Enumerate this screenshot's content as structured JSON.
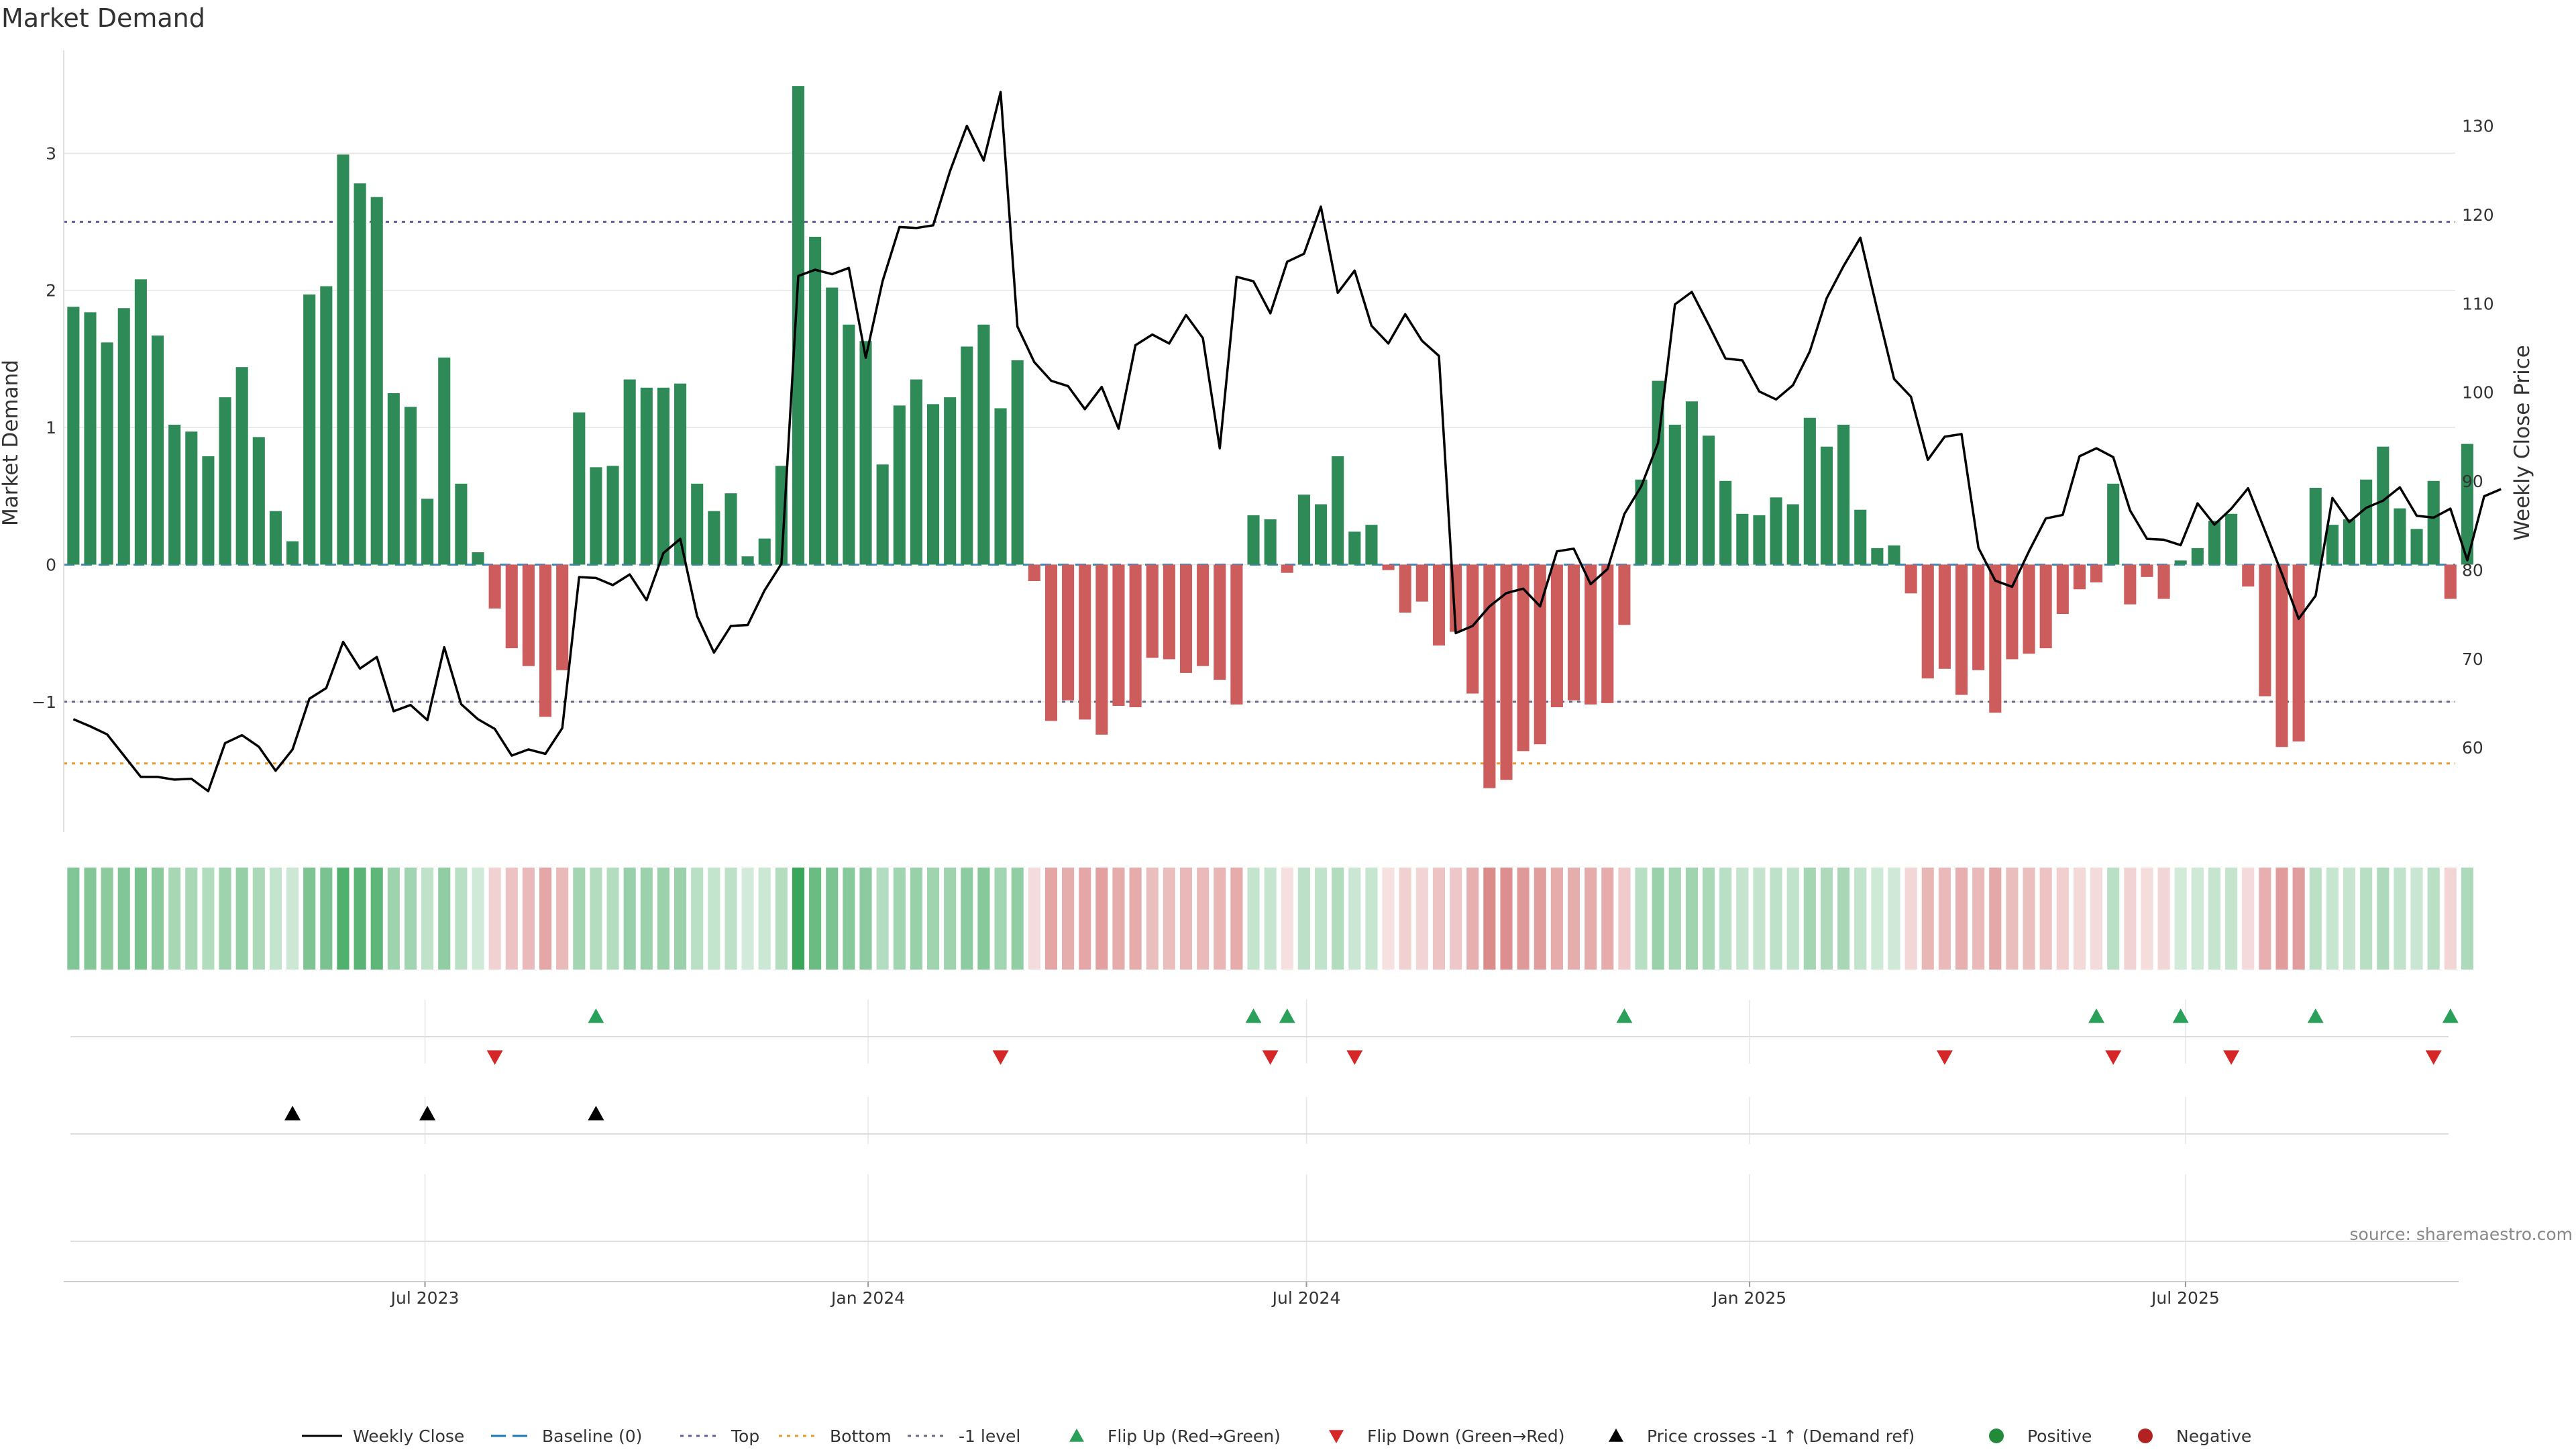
{
  "chart_data": {
    "type": "bar",
    "title": "Market Demand",
    "ylabel": "Market Demand",
    "y2label": "Weekly Close Price",
    "ylim": [
      -1.95,
      3.75
    ],
    "y2lim": [
      50.5,
      138.5
    ],
    "yticks": [
      -1,
      0,
      1,
      2,
      3
    ],
    "y2ticks": [
      60,
      70,
      80,
      90,
      100,
      110,
      120,
      130
    ],
    "xlim": [
      "2023-02-01",
      "2025-10-21"
    ],
    "xticks": [
      {
        "date": "2023-07-01",
        "label": "Jul 2023"
      },
      {
        "date": "2024-01-01",
        "label": "Jan 2024"
      },
      {
        "date": "2024-07-01",
        "label": "Jul 2024"
      },
      {
        "date": "2025-01-01",
        "label": "Jan 2025"
      },
      {
        "date": "2025-07-01",
        "label": "Jul 2025"
      }
    ],
    "start_date": "2023-02-05",
    "interval_days": 7,
    "reference_lines": {
      "baseline": 0,
      "top": 2.5,
      "bottom": -1.45,
      "minus_one_level": -1
    },
    "demand": [
      1.88,
      1.84,
      1.62,
      1.87,
      2.08,
      1.67,
      1.02,
      0.97,
      0.79,
      1.22,
      1.44,
      0.93,
      0.39,
      0.17,
      1.97,
      2.03,
      2.99,
      2.78,
      2.68,
      1.25,
      1.15,
      0.48,
      1.51,
      0.59,
      0.09,
      -0.32,
      -0.61,
      -0.74,
      -1.11,
      -0.77,
      1.11,
      0.71,
      0.72,
      1.35,
      1.29,
      1.29,
      1.32,
      0.59,
      0.39,
      0.52,
      0.06,
      0.19,
      0.72,
      3.49,
      2.39,
      2.02,
      1.75,
      1.63,
      0.73,
      1.16,
      1.35,
      1.17,
      1.22,
      1.59,
      1.75,
      1.14,
      1.49,
      -0.12,
      -1.14,
      -0.99,
      -1.13,
      -1.24,
      -1.03,
      -1.04,
      -0.68,
      -0.69,
      -0.79,
      -0.74,
      -0.84,
      -1.02,
      0.36,
      0.33,
      -0.06,
      0.51,
      0.44,
      0.79,
      0.24,
      0.29,
      -0.04,
      -0.35,
      -0.27,
      -0.59,
      -0.49,
      -0.94,
      -1.63,
      -1.57,
      -1.36,
      -1.31,
      -1.04,
      -0.99,
      -1.02,
      -1.01,
      -0.44,
      0.62,
      1.34,
      1.02,
      1.19,
      0.94,
      0.61,
      0.37,
      0.36,
      0.49,
      0.44,
      1.07,
      0.86,
      1.02,
      0.4,
      0.12,
      0.14,
      -0.21,
      -0.83,
      -0.76,
      -0.95,
      -0.77,
      -1.08,
      -0.69,
      -0.65,
      -0.61,
      -0.36,
      -0.18,
      -0.13,
      0.59,
      -0.29,
      -0.09,
      -0.25,
      0.03,
      0.12,
      0.32,
      0.37,
      -0.16,
      -0.96,
      -1.33,
      -1.29,
      0.56,
      0.29,
      0.33,
      0.62,
      0.86,
      0.41,
      0.26,
      0.61,
      -0.25,
      0.88
    ],
    "weekly_close": [
      63.2,
      62.4,
      61.5,
      59.1,
      56.7,
      56.7,
      56.4,
      56.5,
      55.1,
      60.5,
      61.4,
      60.1,
      57.4,
      59.8,
      65.5,
      66.7,
      71.9,
      68.9,
      70.2,
      64.1,
      64.8,
      63.1,
      71.3,
      64.9,
      63.2,
      62.1,
      59.1,
      59.8,
      59.3,
      62.2,
      79.2,
      79.1,
      78.3,
      79.5,
      76.6,
      81.9,
      83.5,
      74.8,
      70.7,
      73.7,
      73.8,
      77.7,
      80.7,
      113.1,
      113.8,
      113.3,
      114.0,
      103.9,
      112.5,
      118.6,
      118.5,
      118.8,
      124.9,
      130.0,
      126.1,
      133.8,
      107.4,
      103.4,
      101.3,
      100.7,
      98.1,
      100.6,
      95.9,
      105.3,
      106.5,
      105.5,
      108.7,
      106.1,
      93.7,
      113.0,
      112.5,
      108.9,
      114.7,
      115.6,
      120.9,
      111.2,
      113.7,
      107.5,
      105.5,
      108.8,
      105.8,
      104.1,
      72.9,
      73.7,
      75.9,
      77.4,
      77.9,
      75.9,
      82.1,
      82.4,
      78.4,
      80.1,
      86.3,
      89.4,
      94.3,
      109.9,
      111.3,
      107.6,
      103.8,
      103.6,
      100.1,
      99.2,
      100.8,
      104.6,
      110.6,
      114.2,
      117.4,
      109.3,
      101.5,
      99.5,
      92.4,
      95.0,
      95.3,
      82.5,
      78.8,
      78.1,
      82.1,
      85.8,
      86.2,
      92.8,
      93.7,
      92.7,
      86.7,
      83.5,
      83.4,
      82.8,
      87.5,
      85.1,
      86.9,
      89.2,
      84.4,
      79.6,
      74.5,
      77.1,
      88.1,
      85.4,
      87.0,
      87.8,
      89.3,
      86.1,
      85.9,
      86.9,
      81.1,
      88.3,
      89.1
    ],
    "flip_up": [
      "2023-09-10",
      "2024-06-09",
      "2024-06-23",
      "2024-11-10",
      "2025-05-25",
      "2025-06-29",
      "2025-08-24",
      "2025-10-19"
    ],
    "flip_down": [
      "2023-07-30",
      "2024-02-25",
      "2024-06-16",
      "2024-07-21",
      "2025-03-23",
      "2025-06-01",
      "2025-07-20",
      "2025-10-12"
    ],
    "price_cross": [
      "2023-05-07",
      "2023-07-02",
      "2023-09-10"
    ],
    "legend": [
      {
        "label": "Weekly Close",
        "marker": "line",
        "color": "#000000",
        "dash": ""
      },
      {
        "label": "Baseline (0)",
        "marker": "line",
        "color": "#1f77b4",
        "dash": "22 10"
      },
      {
        "label": "Top",
        "marker": "line",
        "color": "#6a5a9e",
        "dash": "5 7"
      },
      {
        "label": "Bottom",
        "marker": "line",
        "color": "#e69a2e",
        "dash": "5 7"
      },
      {
        "label": "-1 level",
        "marker": "line",
        "color": "#6a6a88",
        "dash": "5 7"
      },
      {
        "label": "Flip Up (Red→Green)",
        "marker": "triangle-up",
        "color": "#2aa05a"
      },
      {
        "label": "Flip Down (Green→Red)",
        "marker": "triangle-down",
        "color": "#d62728"
      },
      {
        "label": "Price crosses -1 ↑ (Demand ref)",
        "marker": "triangle-up",
        "color": "#000000"
      },
      {
        "label": "Positive",
        "marker": "circle",
        "color": "#228b3a"
      },
      {
        "label": "Negative",
        "marker": "circle",
        "color": "#b22222"
      }
    ],
    "source": "source: sharemaestro.com"
  },
  "colors": {
    "positive_bar": "#2e8b57",
    "negative_bar": "#cd5c5c",
    "price_line": "#000000",
    "grid": "#e6e6e6"
  }
}
